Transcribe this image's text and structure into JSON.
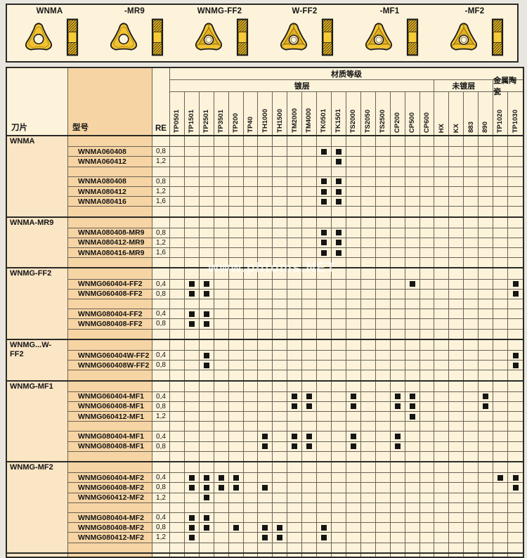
{
  "page": {
    "watermark": "www.phtoms.NET"
  },
  "colors": {
    "panel_bg": "#fcf3da",
    "blade_col_bg": "#fae5c5",
    "model_col_bg": "#f6d4a3",
    "grid_line": "#6b6257",
    "border_dark": "#2a2a26",
    "mark_square": "#151515",
    "insert_gold": "#f2c233",
    "insert_gold_dark": "#dfae23"
  },
  "banner": {
    "items": [
      {
        "label": "WNMA",
        "style": "plain"
      },
      {
        "label": "-MR9",
        "style": "plain"
      },
      {
        "label": "WNMG-FF2",
        "style": "facet"
      },
      {
        "label": "W-FF2",
        "style": "facet"
      },
      {
        "label": "-MF1",
        "style": "facet"
      },
      {
        "label": "-MF2",
        "style": "facet"
      }
    ]
  },
  "table": {
    "corner_headers": {
      "blade": "刀片",
      "model": "型号",
      "re": "RE"
    },
    "group_header": "材质等级",
    "subgroups": [
      {
        "label": "镀层",
        "span": 18
      },
      {
        "label": "未镀层",
        "span": 4
      },
      {
        "label": "金属陶瓷",
        "span": 2
      }
    ],
    "columns": [
      "TP0501",
      "TP1501",
      "TP2501",
      "TP3501",
      "TP200",
      "TP40",
      "TH1000",
      "TH1500",
      "TM2000",
      "TM4000",
      "TK0501",
      "TK1501",
      "TS2000",
      "TS2050",
      "TS2500",
      "CP200",
      "CP500",
      "CP600",
      "HX",
      "KX",
      "883",
      "890",
      "TP1020",
      "TP1030"
    ],
    "sections": [
      {
        "name": "WNMA",
        "rows": [
          {
            "model": "WNMA060408",
            "re": "0,8",
            "marks": [
              "TK0501",
              "TK1501"
            ]
          },
          {
            "model": "WNMA060412",
            "re": "1,2",
            "marks": [
              "TK1501"
            ]
          },
          {
            "spacer": true
          },
          {
            "model": "WNMA080408",
            "re": "0,8",
            "marks": [
              "TK0501",
              "TK1501"
            ]
          },
          {
            "model": "WNMA080412",
            "re": "1,2",
            "marks": [
              "TK0501",
              "TK1501"
            ]
          },
          {
            "model": "WNMA080416",
            "re": "1,6",
            "marks": [
              "TK0501",
              "TK1501"
            ]
          },
          {
            "spacer": true
          }
        ]
      },
      {
        "name": "WNMA-MR9",
        "rows": [
          {
            "model": "WNMA080408-MR9",
            "re": "0,8",
            "marks": [
              "TK0501",
              "TK1501"
            ]
          },
          {
            "model": "WNMA080412-MR9",
            "re": "1,2",
            "marks": [
              "TK0501",
              "TK1501"
            ]
          },
          {
            "model": "WNMA080416-MR9",
            "re": "1,6",
            "marks": [
              "TK0501",
              "TK1501"
            ]
          },
          {
            "spacer": true
          }
        ]
      },
      {
        "name": "WNMG-FF2",
        "rows": [
          {
            "model": "WNMG060404-FF2",
            "re": "0,4",
            "marks": [
              "TP1501",
              "TP2501",
              "CP500",
              "TP1030"
            ]
          },
          {
            "model": "WNMG060408-FF2",
            "re": "0,8",
            "marks": [
              "TP1501",
              "TP2501",
              "TP1030"
            ]
          },
          {
            "spacer": true
          },
          {
            "model": "WNMG080404-FF2",
            "re": "0,4",
            "marks": [
              "TP1501",
              "TP2501"
            ]
          },
          {
            "model": "WNMG080408-FF2",
            "re": "0,8",
            "marks": [
              "TP1501",
              "TP2501"
            ]
          },
          {
            "spacer": true
          }
        ]
      },
      {
        "name": "WNMG...W-FF2",
        "rows": [
          {
            "model": "WNMG060404W-FF2",
            "re": "0,4",
            "marks": [
              "TP2501",
              "TP1030"
            ]
          },
          {
            "model": "WNMG060408W-FF2",
            "re": "0,8",
            "marks": [
              "TP2501",
              "TP1030"
            ]
          },
          {
            "spacer": true
          }
        ]
      },
      {
        "name": "WNMG-MF1",
        "rows": [
          {
            "model": "WNMG060404-MF1",
            "re": "0,4",
            "marks": [
              "TM2000",
              "TM4000",
              "TS2000",
              "CP200",
              "CP500",
              "890"
            ]
          },
          {
            "model": "WNMG060408-MF1",
            "re": "0,8",
            "marks": [
              "TM2000",
              "TM4000",
              "TS2000",
              "CP200",
              "CP500",
              "890"
            ]
          },
          {
            "model": "WNMG060412-MF1",
            "re": "1,2",
            "marks": [
              "CP500"
            ]
          },
          {
            "spacer": true
          },
          {
            "model": "WNMG080404-MF1",
            "re": "0,4",
            "marks": [
              "TH1000",
              "TM2000",
              "TM4000",
              "TS2000",
              "CP200"
            ]
          },
          {
            "model": "WNMG080408-MF1",
            "re": "0,8",
            "marks": [
              "TH1000",
              "TM2000",
              "TM4000",
              "TS2000",
              "CP200"
            ]
          },
          {
            "spacer": true
          }
        ]
      },
      {
        "name": "WNMG-MF2",
        "rows": [
          {
            "model": "WNMG060404-MF2",
            "re": "0,4",
            "marks": [
              "TP1501",
              "TP2501",
              "TP3501",
              "TP200",
              "TP1020",
              "TP1030"
            ]
          },
          {
            "model": "WNMG060408-MF2",
            "re": "0,8",
            "marks": [
              "TP1501",
              "TP2501",
              "TP3501",
              "TP200",
              "TH1000",
              "TP1030"
            ]
          },
          {
            "model": "WNMG060412-MF2",
            "re": "1,2",
            "marks": [
              "TP2501"
            ]
          },
          {
            "spacer": true
          },
          {
            "model": "WNMG080404-MF2",
            "re": "0,4",
            "marks": [
              "TP1501",
              "TP2501"
            ]
          },
          {
            "model": "WNMG080408-MF2",
            "re": "0,8",
            "marks": [
              "TP1501",
              "TP2501",
              "TP200",
              "TH1000",
              "TH1500",
              "TK0501"
            ]
          },
          {
            "model": "WNMG080412-MF2",
            "re": "1,2",
            "marks": [
              "TP1501",
              "TH1000",
              "TH1500",
              "TK0501"
            ]
          },
          {
            "spacer": true
          }
        ]
      }
    ]
  }
}
